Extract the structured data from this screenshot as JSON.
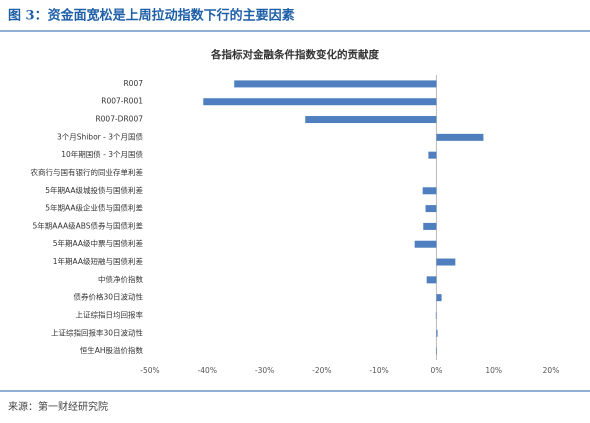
{
  "chart_data": {
    "type": "bar",
    "orientation": "horizontal",
    "caption": "图 3：资金面宽松是上周拉动指数下行的主要因素",
    "title": "各指标对金融条件指数变化的贡献度",
    "source": "来源：第一财经研究院",
    "categories": [
      "R007",
      "R007-R001",
      "R007-DR007",
      "3个月Shibor - 3个月国债",
      "10年期国债 - 3个月国债",
      "农商行与国有银行的同业存单利差",
      "5年期AA级城投债与国债利差",
      "5年期AA级企业债与国债利差",
      "5年期AAA级ABS债券与国债利差",
      "5年期AA级中票与国债利差",
      "1年期AA级短融与国债利差",
      "中债净价指数",
      "债券价格30日波动性",
      "上证综指日均回报率",
      "上证综指回报率30日波动性",
      "恒生AH股溢价指数"
    ],
    "values": [
      -35.3,
      -40.7,
      -22.9,
      8.2,
      -1.4,
      0,
      -2.4,
      -1.9,
      -2.3,
      -3.8,
      3.3,
      -1.7,
      0.9,
      -0.1,
      0.2,
      0.1
    ],
    "color": "#4f7fbe",
    "xlim": [
      -50,
      20
    ],
    "xticks": [
      {
        "value": -50,
        "label": "-50%"
      },
      {
        "value": -40,
        "label": "-40%"
      },
      {
        "value": -30,
        "label": "-30%"
      },
      {
        "value": -20,
        "label": "-20%"
      },
      {
        "value": -10,
        "label": "-10%"
      },
      {
        "value": 0,
        "label": "0%"
      },
      {
        "value": 10,
        "label": "10%"
      },
      {
        "value": 20,
        "label": "20%"
      }
    ]
  }
}
